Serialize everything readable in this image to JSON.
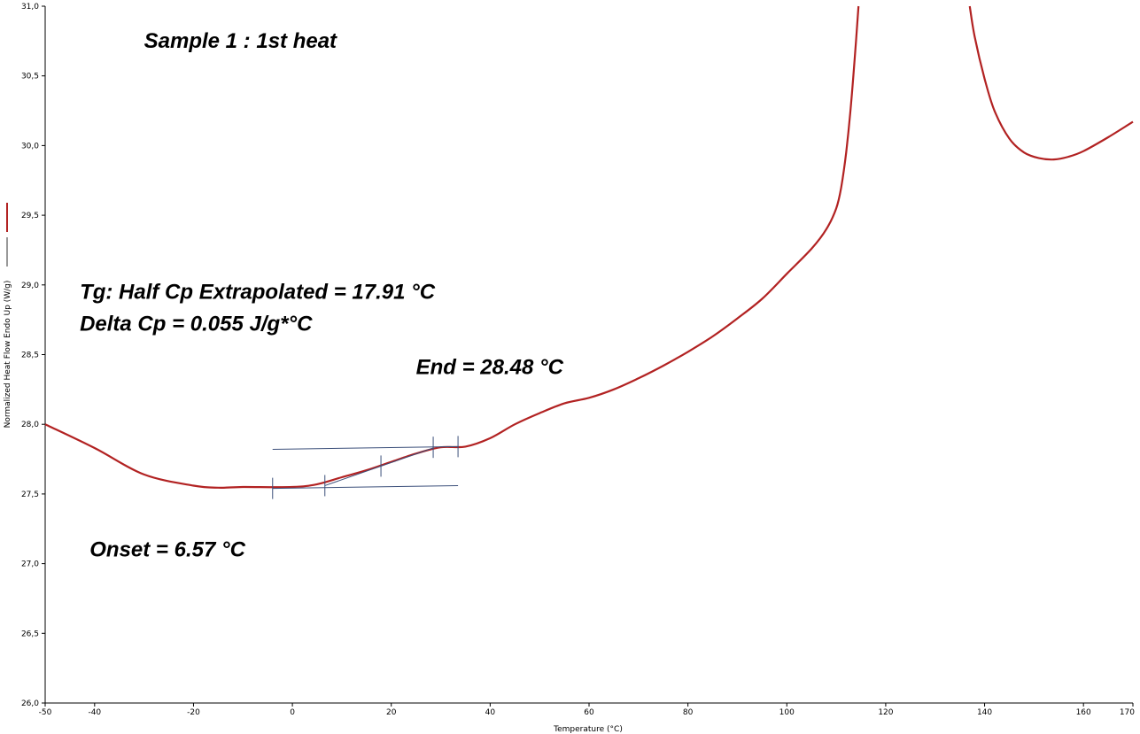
{
  "chart_data": {
    "type": "line",
    "xlabel": "Temperature (°C)",
    "ylabel": "Normalized Heat Flow Endo Up (W/g)",
    "xlim": [
      -50,
      170
    ],
    "ylim": [
      26.0,
      31.0
    ],
    "x_ticks": [
      "-50",
      "-40",
      "-20",
      "0",
      "20",
      "40",
      "60",
      "80",
      "100",
      "120",
      "140",
      "160",
      "170"
    ],
    "y_ticks": [
      "26,0",
      "26,5",
      "27,0",
      "27,5",
      "28,0",
      "28,5",
      "29,0",
      "29,5",
      "30,0",
      "30,5",
      "31,0"
    ],
    "series": [
      {
        "color": "#b22222",
        "points": [
          [
            -50,
            28.0
          ],
          [
            -40,
            27.83
          ],
          [
            -30,
            27.64
          ],
          [
            -20,
            27.56
          ],
          [
            -15,
            27.545
          ],
          [
            -10,
            27.55
          ],
          [
            0,
            27.55
          ],
          [
            5,
            27.57
          ],
          [
            10,
            27.62
          ],
          [
            15,
            27.67
          ],
          [
            20,
            27.73
          ],
          [
            25,
            27.79
          ],
          [
            30,
            27.835
          ],
          [
            35,
            27.84
          ],
          [
            40,
            27.9
          ],
          [
            45,
            28.0
          ],
          [
            50,
            28.08
          ],
          [
            55,
            28.15
          ],
          [
            60,
            28.19
          ],
          [
            65,
            28.25
          ],
          [
            70,
            28.33
          ],
          [
            75,
            28.42
          ],
          [
            80,
            28.52
          ],
          [
            85,
            28.63
          ],
          [
            90,
            28.76
          ],
          [
            95,
            28.9
          ],
          [
            100,
            29.08
          ],
          [
            105,
            29.26
          ],
          [
            108,
            29.4
          ],
          [
            110,
            29.55
          ],
          [
            111,
            29.7
          ],
          [
            112,
            29.95
          ],
          [
            113,
            30.3
          ],
          [
            114,
            30.75
          ],
          [
            114.5,
            31.0
          ]
        ]
      },
      {
        "color": "#b22222",
        "points": [
          [
            137,
            31.0
          ],
          [
            138,
            30.78
          ],
          [
            140,
            30.48
          ],
          [
            142,
            30.25
          ],
          [
            145,
            30.05
          ],
          [
            148,
            29.95
          ],
          [
            151,
            29.91
          ],
          [
            154,
            29.9
          ],
          [
            157,
            29.92
          ],
          [
            160,
            29.96
          ],
          [
            165,
            30.06
          ],
          [
            170,
            30.17
          ]
        ]
      }
    ],
    "analysis_lines": [
      {
        "from": [
          -4,
          27.82
        ],
        "to": [
          33.5,
          27.84
        ]
      },
      {
        "from": [
          -4,
          27.54
        ],
        "to": [
          33.5,
          27.56
        ]
      },
      {
        "from": [
          6.57,
          27.56
        ],
        "to": [
          28.48,
          27.83
        ]
      }
    ],
    "analysis_markers": [
      {
        "x": -4,
        "y": 27.54
      },
      {
        "x": 6.57,
        "y": 27.56
      },
      {
        "x": 17.91,
        "y": 27.7
      },
      {
        "x": 28.48,
        "y": 27.835
      },
      {
        "x": 33.5,
        "y": 27.84
      }
    ],
    "annotations": [
      {
        "text": "Sample 1  :  1st heat",
        "x": -30,
        "y": 30.7
      },
      {
        "text": "Tg: Half Cp Extrapolated = 17.91 °C",
        "x": -43,
        "y": 28.9
      },
      {
        "text": "Delta Cp = 0.055 J/g*°C",
        "x": -43,
        "y": 28.67
      },
      {
        "text": "End = 28.48 °C",
        "x": 25,
        "y": 28.36
      },
      {
        "text": "Onset = 6.57 °C",
        "x": -41,
        "y": 27.05
      }
    ],
    "legend": [
      {
        "color": "#b22222"
      },
      {
        "color": "#333333"
      }
    ],
    "grid": false
  }
}
